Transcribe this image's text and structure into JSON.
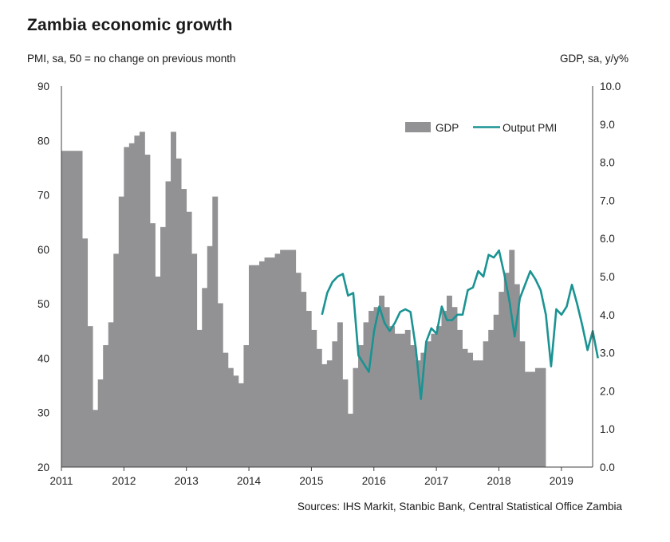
{
  "header": {
    "title": "Zambia  economic  growth",
    "left_axis_title": "PMI, sa, 50 = no change on previous month",
    "right_axis_title": "GDP, sa, y/y%"
  },
  "footer": {
    "source": "Sources: IHS Markit, Stanbic Bank, Central Statistical Office Zambia"
  },
  "colors": {
    "gdp": "#929295",
    "pmi": "#1a9392",
    "axis": "#404040"
  },
  "chart_data": {
    "type": "bar+line",
    "x_ticks": [
      "2011",
      "2012",
      "2013",
      "2014",
      "2015",
      "2016",
      "2017",
      "2018",
      "2019"
    ],
    "left_axis": {
      "ylim": [
        20,
        90
      ],
      "ticks": [
        "20",
        "30",
        "40",
        "50",
        "60",
        "70",
        "80",
        "90"
      ]
    },
    "right_axis": {
      "ylim": [
        0,
        10
      ],
      "ticks": [
        "0.0",
        "1.0",
        "2.0",
        "3.0",
        "4.0",
        "5.0",
        "6.0",
        "7.0",
        "8.0",
        "9.0",
        "10.0"
      ]
    },
    "legend": {
      "position": "top-right",
      "gdp_label": "GDP",
      "pmi_label": "Output PMI"
    },
    "series": [
      {
        "name": "GDP",
        "kind": "bar",
        "axis": "right",
        "x_start": 2011.0,
        "step_years": 0.0833,
        "values": [
          8.3,
          8.3,
          8.3,
          8.3,
          6.0,
          3.7,
          1.5,
          2.3,
          3.2,
          3.8,
          5.6,
          7.1,
          8.4,
          8.5,
          8.7,
          8.8,
          8.2,
          6.4,
          5.0,
          6.3,
          7.5,
          8.8,
          8.1,
          7.3,
          6.7,
          5.6,
          3.6,
          4.7,
          5.8,
          7.1,
          4.3,
          3.0,
          2.6,
          2.4,
          2.2,
          3.2,
          5.3,
          5.3,
          5.4,
          5.5,
          5.5,
          5.6,
          5.7,
          5.7,
          5.7,
          5.1,
          4.6,
          4.1,
          3.6,
          3.1,
          2.7,
          2.8,
          3.3,
          3.8,
          2.3,
          1.4,
          2.6,
          3.2,
          3.8,
          4.1,
          4.2,
          4.5,
          4.2,
          3.7,
          3.5,
          3.5,
          3.6,
          3.2,
          2.8,
          3.0,
          3.3,
          3.5,
          3.7,
          4.1,
          4.5,
          4.2,
          3.6,
          3.1,
          3.0,
          2.8,
          2.8,
          3.3,
          3.6,
          4.0,
          4.6,
          5.1,
          5.7,
          4.8,
          3.3,
          2.5,
          2.5,
          2.6,
          2.6
        ]
      },
      {
        "name": "Output PMI",
        "kind": "line",
        "axis": "left",
        "x_start": 2015.17,
        "step_years": 0.0833,
        "values": [
          48.0,
          52.0,
          54.0,
          55.0,
          55.5,
          51.5,
          52.0,
          40.5,
          39.0,
          37.5,
          45.0,
          49.5,
          46.5,
          45.0,
          46.5,
          48.5,
          49.0,
          48.5,
          42.0,
          32.5,
          43.0,
          45.5,
          44.5,
          49.5,
          47.0,
          47.0,
          48.0,
          48.0,
          52.5,
          53.0,
          56.0,
          55.0,
          59.0,
          58.5,
          59.8,
          55.5,
          50.5,
          44.0,
          51.0,
          53.5,
          56.0,
          54.5,
          52.5,
          48.0,
          38.5,
          49.0,
          48.0,
          49.5,
          53.5,
          50.0,
          46.0,
          41.5,
          45.0,
          40.0
        ]
      }
    ]
  }
}
